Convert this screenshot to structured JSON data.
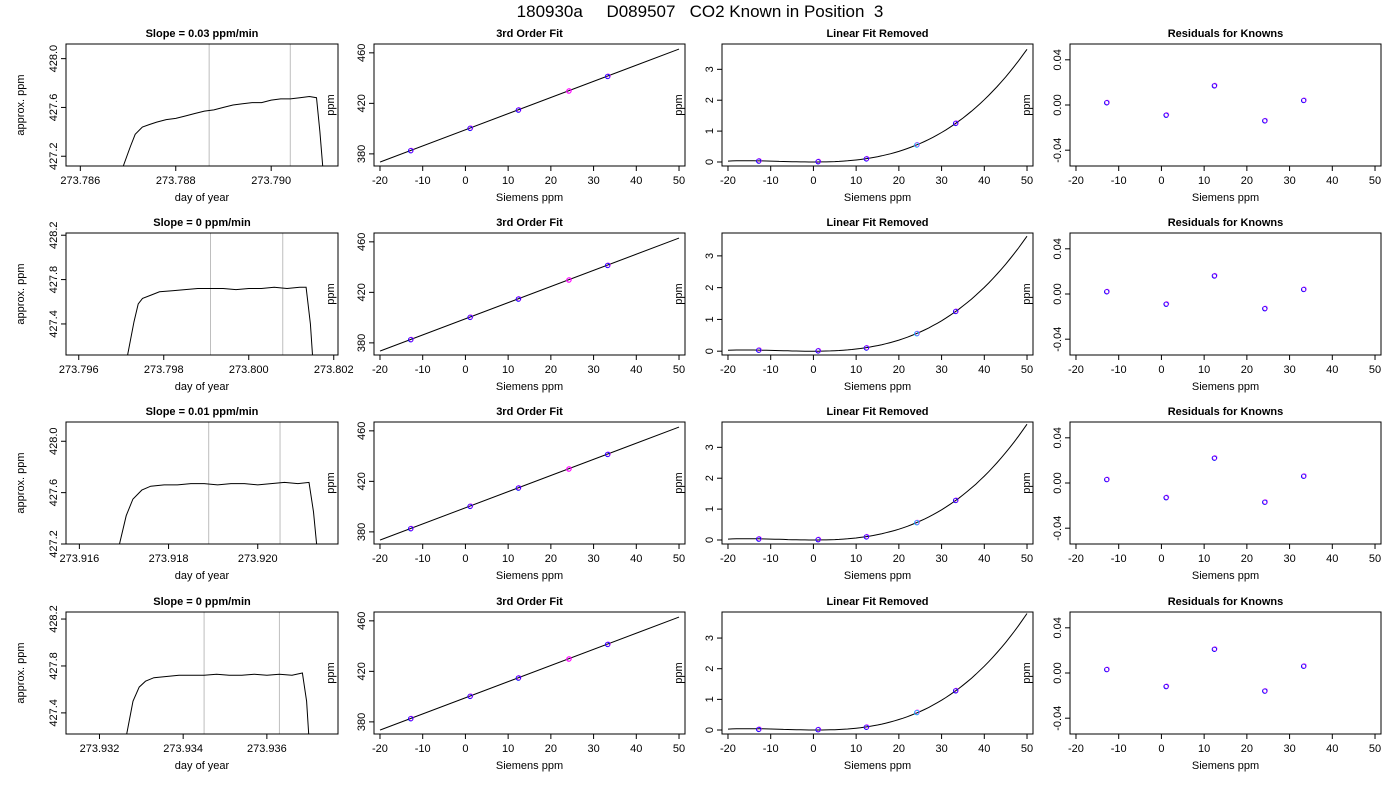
{
  "title": "180930a     D089507   CO2 Known in Position  3",
  "chart_data": [
    {
      "type": "line",
      "title": "Slope =  0.03  ppm/min",
      "xlabel": "day of year",
      "ylabel": "approx. ppm",
      "xlim": [
        273.7857,
        273.7914
      ],
      "ylim": [
        427.12,
        428.12
      ],
      "xticks": [
        "273.786",
        "273.788",
        "273.790"
      ],
      "yticks": [
        "427.2",
        "427.6",
        "428.0"
      ],
      "vlines": [
        273.7887,
        273.7904
      ],
      "series": [
        {
          "x": [
            273.7869,
            273.78705,
            273.78715,
            273.7873,
            273.78745,
            273.7876,
            273.7878,
            273.788,
            273.7882,
            273.7884,
            273.7886,
            273.7888,
            273.789,
            273.7892,
            273.7894,
            273.7896,
            273.7898,
            273.79,
            273.7902,
            273.7904,
            273.7906,
            273.7908,
            273.79095,
            273.79102,
            273.79108
          ],
          "y": [
            427.12,
            427.28,
            427.38,
            427.44,
            427.46,
            427.48,
            427.5,
            427.51,
            427.53,
            427.55,
            427.57,
            427.58,
            427.6,
            427.62,
            427.63,
            427.64,
            427.64,
            427.66,
            427.67,
            427.67,
            427.68,
            427.69,
            427.68,
            427.4,
            427.12
          ]
        }
      ]
    },
    {
      "type": "scatter",
      "title": "3rd Order Fit",
      "xlabel": "Siemens ppm",
      "ylabel": "ppm",
      "xlim": [
        -21.4,
        51.4
      ],
      "ylim": [
        370.4,
        467.0
      ],
      "xticks": [
        "-20",
        "-10",
        "0",
        "10",
        "20",
        "30",
        "40",
        "50"
      ],
      "yticks": [
        "380",
        "420",
        "460"
      ],
      "fit_line": [
        [
          -20,
          373.5
        ],
        [
          50,
          463.0
        ]
      ],
      "points": [
        {
          "x": -12.8,
          "y": 382.5
        },
        {
          "x": 1.1,
          "y": 400.2
        },
        {
          "x": 12.4,
          "y": 414.7
        },
        {
          "x": 24.2,
          "y": 429.7
        },
        {
          "x": 33.3,
          "y": 441.3
        }
      ]
    },
    {
      "type": "scatter",
      "title": "Linear Fit Removed",
      "xlabel": "Siemens ppm",
      "ylabel": "ppm",
      "xlim": [
        -21.4,
        51.4
      ],
      "ylim": [
        -0.13,
        3.82
      ],
      "xticks": [
        "-20",
        "-10",
        "0",
        "10",
        "20",
        "30",
        "40",
        "50"
      ],
      "yticks": [
        "0",
        "1",
        "2",
        "3"
      ],
      "fit_curve": "cubic",
      "curve_end": 3.65,
      "points": [
        {
          "x": -12.8,
          "y": 0.03
        },
        {
          "x": 1.1,
          "y": 0.01
        },
        {
          "x": 12.4,
          "y": 0.1
        },
        {
          "x": 24.2,
          "y": 0.55
        },
        {
          "x": 33.3,
          "y": 1.25
        }
      ]
    },
    {
      "type": "scatter",
      "title": "Residuals for Knowns",
      "xlabel": "Siemens ppm",
      "ylabel": "ppm",
      "xlim": [
        -21.4,
        51.4
      ],
      "ylim": [
        -0.054,
        0.054
      ],
      "xticks": [
        "-20",
        "-10",
        "0",
        "10",
        "20",
        "30",
        "40",
        "50"
      ],
      "yticks": [
        "-0.04",
        "0.00",
        "0.04"
      ],
      "points": [
        {
          "x": -12.8,
          "y": 0.002
        },
        {
          "x": 1.1,
          "y": -0.009
        },
        {
          "x": 12.4,
          "y": 0.017
        },
        {
          "x": 24.2,
          "y": -0.014
        },
        {
          "x": 33.3,
          "y": 0.004
        }
      ]
    },
    {
      "type": "line",
      "title": "Slope =  0  ppm/min",
      "xlabel": "day of year",
      "ylabel": "approx. ppm",
      "xlim": [
        273.7957,
        273.8021
      ],
      "ylim": [
        427.12,
        428.22
      ],
      "xticks": [
        "273.796",
        "273.798",
        "273.800",
        "273.802"
      ],
      "yticks": [
        "427.4",
        "427.8",
        "428.2"
      ],
      "vlines": [
        273.7991,
        273.8008
      ],
      "series": [
        {
          "x": [
            273.79715,
            273.7973,
            273.7974,
            273.7975,
            273.7977,
            273.7979,
            273.7982,
            273.7985,
            273.7988,
            273.7991,
            273.7994,
            273.7997,
            273.8,
            273.8003,
            273.8006,
            273.8009,
            273.8012,
            273.80135,
            273.80145,
            273.8015
          ],
          "y": [
            427.12,
            427.42,
            427.58,
            427.63,
            427.66,
            427.69,
            427.7,
            427.71,
            427.72,
            427.72,
            427.72,
            427.71,
            427.72,
            427.72,
            427.73,
            427.72,
            427.73,
            427.73,
            427.4,
            427.12
          ]
        }
      ]
    },
    {
      "type": "scatter",
      "title": "3rd Order Fit",
      "xlabel": "Siemens ppm",
      "ylabel": "ppm",
      "xlim": [
        -21.4,
        51.4
      ],
      "ylim": [
        370.4,
        467.0
      ],
      "xticks": [
        "-20",
        "-10",
        "0",
        "10",
        "20",
        "30",
        "40",
        "50"
      ],
      "yticks": [
        "380",
        "420",
        "460"
      ],
      "fit_line": [
        [
          -20,
          373.5
        ],
        [
          50,
          463.0
        ]
      ],
      "points": [
        {
          "x": -12.8,
          "y": 382.5
        },
        {
          "x": 1.1,
          "y": 400.2
        },
        {
          "x": 12.4,
          "y": 414.7
        },
        {
          "x": 24.2,
          "y": 429.7
        },
        {
          "x": 33.3,
          "y": 441.3
        }
      ]
    },
    {
      "type": "scatter",
      "title": "Linear Fit Removed",
      "xlabel": "Siemens ppm",
      "ylabel": "ppm",
      "xlim": [
        -21.4,
        51.4
      ],
      "ylim": [
        -0.12,
        3.72
      ],
      "xticks": [
        "-20",
        "-10",
        "0",
        "10",
        "20",
        "30",
        "40",
        "50"
      ],
      "yticks": [
        "0",
        "1",
        "2",
        "3"
      ],
      "fit_curve": "cubic",
      "curve_end": 3.62,
      "points": [
        {
          "x": -12.8,
          "y": 0.03
        },
        {
          "x": 1.1,
          "y": 0.01
        },
        {
          "x": 12.4,
          "y": 0.1
        },
        {
          "x": 24.2,
          "y": 0.55
        },
        {
          "x": 33.3,
          "y": 1.25
        }
      ]
    },
    {
      "type": "scatter",
      "title": "Residuals for Knowns",
      "xlabel": "Siemens ppm",
      "ylabel": "ppm",
      "xlim": [
        -21.4,
        51.4
      ],
      "ylim": [
        -0.054,
        0.054
      ],
      "xticks": [
        "-20",
        "-10",
        "0",
        "10",
        "20",
        "30",
        "40",
        "50"
      ],
      "yticks": [
        "-0.04",
        "0.00",
        "0.04"
      ],
      "points": [
        {
          "x": -12.8,
          "y": 0.002
        },
        {
          "x": 1.1,
          "y": -0.009
        },
        {
          "x": 12.4,
          "y": 0.016
        },
        {
          "x": 24.2,
          "y": -0.013
        },
        {
          "x": 33.3,
          "y": 0.004
        }
      ]
    },
    {
      "type": "line",
      "title": "Slope =  0.01  ppm/min",
      "xlabel": "day of year",
      "ylabel": "approx. ppm",
      "xlim": [
        273.9157,
        273.9218
      ],
      "ylim": [
        427.2,
        428.15
      ],
      "xticks": [
        "273.916",
        "273.918",
        "273.920"
      ],
      "yticks": [
        "427.2",
        "427.6",
        "428.0"
      ],
      "vlines": [
        273.9189,
        273.9205
      ],
      "series": [
        {
          "x": [
            273.9169,
            273.91705,
            273.9172,
            273.9174,
            273.9176,
            273.9179,
            273.9182,
            273.9185,
            273.9188,
            273.9191,
            273.9194,
            273.9197,
            273.92,
            273.9203,
            273.9206,
            273.9209,
            273.92115,
            273.92125,
            273.92132
          ],
          "y": [
            427.2,
            427.42,
            427.55,
            427.62,
            427.65,
            427.66,
            427.66,
            427.67,
            427.67,
            427.66,
            427.67,
            427.67,
            427.66,
            427.67,
            427.68,
            427.67,
            427.68,
            427.45,
            427.2
          ]
        }
      ]
    },
    {
      "type": "scatter",
      "title": "3rd Order Fit",
      "xlabel": "Siemens ppm",
      "ylabel": "ppm",
      "xlim": [
        -21.4,
        51.4
      ],
      "ylim": [
        370.4,
        467.0
      ],
      "xticks": [
        "-20",
        "-10",
        "0",
        "10",
        "20",
        "30",
        "40",
        "50"
      ],
      "yticks": [
        "380",
        "420",
        "460"
      ],
      "fit_line": [
        [
          -20,
          373.5
        ],
        [
          50,
          463.0
        ]
      ],
      "points": [
        {
          "x": -12.8,
          "y": 382.5
        },
        {
          "x": 1.1,
          "y": 400.2
        },
        {
          "x": 12.4,
          "y": 414.7
        },
        {
          "x": 24.2,
          "y": 429.7
        },
        {
          "x": 33.3,
          "y": 441.3
        }
      ]
    },
    {
      "type": "scatter",
      "title": "Linear Fit Removed",
      "xlabel": "Siemens ppm",
      "ylabel": "ppm",
      "xlim": [
        -21.4,
        51.4
      ],
      "ylim": [
        -0.13,
        3.82
      ],
      "xticks": [
        "-20",
        "-10",
        "0",
        "10",
        "20",
        "30",
        "40",
        "50"
      ],
      "yticks": [
        "0",
        "1",
        "2",
        "3"
      ],
      "fit_curve": "cubic",
      "curve_end": 3.75,
      "points": [
        {
          "x": -12.8,
          "y": 0.03
        },
        {
          "x": 1.1,
          "y": 0.01
        },
        {
          "x": 12.4,
          "y": 0.1
        },
        {
          "x": 24.2,
          "y": 0.56
        },
        {
          "x": 33.3,
          "y": 1.28
        }
      ]
    },
    {
      "type": "scatter",
      "title": "Residuals for Knowns",
      "xlabel": "Siemens ppm",
      "ylabel": "ppm",
      "xlim": [
        -21.4,
        51.4
      ],
      "ylim": [
        -0.054,
        0.054
      ],
      "xticks": [
        "-20",
        "-10",
        "0",
        "10",
        "20",
        "30",
        "40",
        "50"
      ],
      "yticks": [
        "-0.04",
        "0.00",
        "0.04"
      ],
      "points": [
        {
          "x": -12.8,
          "y": 0.003
        },
        {
          "x": 1.1,
          "y": -0.013
        },
        {
          "x": 12.4,
          "y": 0.022
        },
        {
          "x": 24.2,
          "y": -0.017
        },
        {
          "x": 33.3,
          "y": 0.006
        }
      ]
    },
    {
      "type": "line",
      "title": "Slope =  0  ppm/min",
      "xlabel": "day of year",
      "ylabel": "approx. ppm",
      "xlim": [
        273.9312,
        273.9377
      ],
      "ylim": [
        427.22,
        428.26
      ],
      "xticks": [
        "273.932",
        "273.934",
        "273.936"
      ],
      "yticks": [
        "427.4",
        "427.8",
        "428.2"
      ],
      "vlines": [
        273.9345,
        273.9363
      ],
      "series": [
        {
          "x": [
            273.93265,
            273.9328,
            273.93295,
            273.9331,
            273.9333,
            273.9336,
            273.9339,
            273.9342,
            273.9345,
            273.9348,
            273.9351,
            273.9354,
            273.9357,
            273.936,
            273.9363,
            273.9366,
            273.93685,
            273.93695,
            273.937
          ],
          "y": [
            427.22,
            427.5,
            427.62,
            427.67,
            427.7,
            427.71,
            427.72,
            427.72,
            427.72,
            427.73,
            427.72,
            427.72,
            427.73,
            427.72,
            427.73,
            427.72,
            427.74,
            427.5,
            427.22
          ]
        }
      ]
    },
    {
      "type": "scatter",
      "title": "3rd Order Fit",
      "xlabel": "Siemens ppm",
      "ylabel": "ppm",
      "xlim": [
        -21.4,
        51.4
      ],
      "ylim": [
        370.4,
        467.0
      ],
      "xticks": [
        "-20",
        "-10",
        "0",
        "10",
        "20",
        "30",
        "40",
        "50"
      ],
      "yticks": [
        "380",
        "420",
        "460"
      ],
      "fit_line": [
        [
          -20,
          373.5
        ],
        [
          50,
          463.0
        ]
      ],
      "points": [
        {
          "x": -12.8,
          "y": 382.5
        },
        {
          "x": 1.1,
          "y": 400.2
        },
        {
          "x": 12.4,
          "y": 414.7
        },
        {
          "x": 24.2,
          "y": 429.7
        },
        {
          "x": 33.3,
          "y": 441.3
        }
      ]
    },
    {
      "type": "scatter",
      "title": "Linear Fit Removed",
      "xlabel": "Siemens ppm",
      "ylabel": "ppm",
      "xlim": [
        -21.4,
        51.4
      ],
      "ylim": [
        -0.13,
        3.85
      ],
      "xticks": [
        "-20",
        "-10",
        "0",
        "10",
        "20",
        "30",
        "40",
        "50"
      ],
      "yticks": [
        "0",
        "1",
        "2",
        "3"
      ],
      "fit_curve": "cubic",
      "curve_end": 3.8,
      "points": [
        {
          "x": -12.8,
          "y": 0.02
        },
        {
          "x": 1.1,
          "y": 0.01
        },
        {
          "x": 12.4,
          "y": 0.09
        },
        {
          "x": 24.2,
          "y": 0.57
        },
        {
          "x": 33.3,
          "y": 1.28
        }
      ]
    },
    {
      "type": "scatter",
      "title": "Residuals for Knowns",
      "xlabel": "Siemens ppm",
      "ylabel": "ppm",
      "xlim": [
        -21.4,
        51.4
      ],
      "ylim": [
        -0.054,
        0.054
      ],
      "xticks": [
        "-20",
        "-10",
        "0",
        "10",
        "20",
        "30",
        "40",
        "50"
      ],
      "yticks": [
        "-0.04",
        "0.00",
        "0.04"
      ],
      "points": [
        {
          "x": -12.8,
          "y": 0.003
        },
        {
          "x": 1.1,
          "y": -0.012
        },
        {
          "x": 12.4,
          "y": 0.021
        },
        {
          "x": 24.2,
          "y": -0.016
        },
        {
          "x": 33.3,
          "y": 0.006
        }
      ]
    }
  ],
  "colors": {
    "axis": "#000000",
    "vline": "#bebebe",
    "point": "#0000ff",
    "point_alt": "#ff00ff",
    "point_light": "#00bfff"
  }
}
